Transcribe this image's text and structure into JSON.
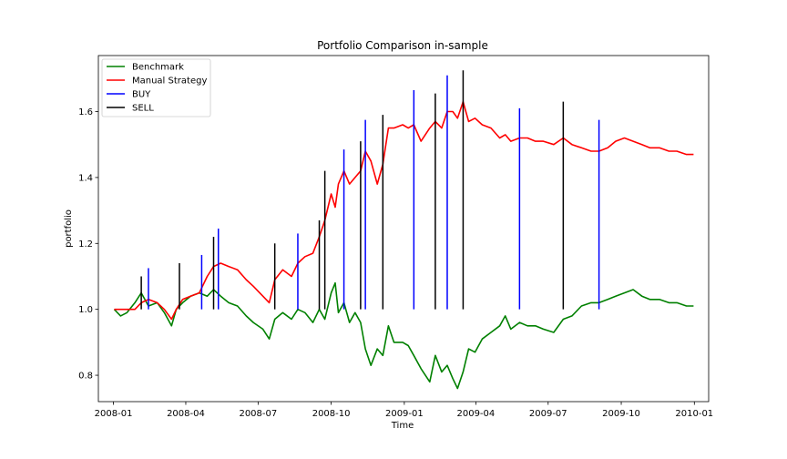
{
  "chart_data": {
    "type": "line",
    "title": "Portfolio Comparison in-sample",
    "xlabel": "Time",
    "ylabel": "portfolio",
    "xlim": [
      "2007-12-13",
      "2010-01-19"
    ],
    "ylim": [
      0.72,
      1.77
    ],
    "x_ticks": [
      {
        "date": "2008-01-01",
        "label": "2008-01"
      },
      {
        "date": "2008-04-01",
        "label": "2008-04"
      },
      {
        "date": "2008-07-01",
        "label": "2008-07"
      },
      {
        "date": "2008-10-01",
        "label": "2008-10"
      },
      {
        "date": "2009-01-01",
        "label": "2009-01"
      },
      {
        "date": "2009-04-01",
        "label": "2009-04"
      },
      {
        "date": "2009-07-01",
        "label": "2009-07"
      },
      {
        "date": "2009-10-01",
        "label": "2009-10"
      },
      {
        "date": "2010-01-01",
        "label": "2010-01"
      }
    ],
    "y_ticks": [
      0.8,
      1.0,
      1.2,
      1.4,
      1.6
    ],
    "grid": false,
    "legend_position": "top-left",
    "legend": [
      {
        "label": "Benchmark",
        "color": "#008000"
      },
      {
        "label": "Manual Strategy",
        "color": "#ff0000"
      },
      {
        "label": "BUY",
        "color": "#0000ff"
      },
      {
        "label": "SELL",
        "color": "#000000"
      }
    ],
    "series": [
      {
        "name": "Benchmark",
        "color": "#008000",
        "points": [
          [
            "2008-01-02",
            1.0
          ],
          [
            "2008-01-10",
            0.98
          ],
          [
            "2008-01-18",
            0.99
          ],
          [
            "2008-01-28",
            1.02
          ],
          [
            "2008-02-05",
            1.05
          ],
          [
            "2008-02-14",
            1.01
          ],
          [
            "2008-02-25",
            1.02
          ],
          [
            "2008-03-05",
            0.99
          ],
          [
            "2008-03-14",
            0.95
          ],
          [
            "2008-03-20",
            1.0
          ],
          [
            "2008-03-28",
            1.02
          ],
          [
            "2008-04-07",
            1.04
          ],
          [
            "2008-04-18",
            1.05
          ],
          [
            "2008-04-28",
            1.04
          ],
          [
            "2008-05-06",
            1.06
          ],
          [
            "2008-05-15",
            1.04
          ],
          [
            "2008-05-25",
            1.02
          ],
          [
            "2008-06-05",
            1.01
          ],
          [
            "2008-06-16",
            0.98
          ],
          [
            "2008-06-25",
            0.96
          ],
          [
            "2008-07-07",
            0.94
          ],
          [
            "2008-07-15",
            0.91
          ],
          [
            "2008-07-22",
            0.97
          ],
          [
            "2008-08-01",
            0.99
          ],
          [
            "2008-08-12",
            0.97
          ],
          [
            "2008-08-20",
            1.0
          ],
          [
            "2008-08-29",
            0.99
          ],
          [
            "2008-09-08",
            0.96
          ],
          [
            "2008-09-16",
            1.0
          ],
          [
            "2008-09-23",
            0.97
          ],
          [
            "2008-10-01",
            1.05
          ],
          [
            "2008-10-06",
            1.08
          ],
          [
            "2008-10-10",
            0.99
          ],
          [
            "2008-10-17",
            1.02
          ],
          [
            "2008-10-24",
            0.96
          ],
          [
            "2008-10-31",
            0.99
          ],
          [
            "2008-11-07",
            0.96
          ],
          [
            "2008-11-13",
            0.88
          ],
          [
            "2008-11-20",
            0.83
          ],
          [
            "2008-11-28",
            0.88
          ],
          [
            "2008-12-05",
            0.86
          ],
          [
            "2008-12-12",
            0.95
          ],
          [
            "2008-12-19",
            0.9
          ],
          [
            "2008-12-30",
            0.9
          ],
          [
            "2009-01-06",
            0.89
          ],
          [
            "2009-01-13",
            0.86
          ],
          [
            "2009-01-22",
            0.82
          ],
          [
            "2009-02-02",
            0.78
          ],
          [
            "2009-02-09",
            0.86
          ],
          [
            "2009-02-17",
            0.81
          ],
          [
            "2009-02-24",
            0.83
          ],
          [
            "2009-03-03",
            0.79
          ],
          [
            "2009-03-09",
            0.76
          ],
          [
            "2009-03-16",
            0.81
          ],
          [
            "2009-03-23",
            0.88
          ],
          [
            "2009-03-31",
            0.87
          ],
          [
            "2009-04-09",
            0.91
          ],
          [
            "2009-04-20",
            0.93
          ],
          [
            "2009-05-01",
            0.95
          ],
          [
            "2009-05-08",
            0.98
          ],
          [
            "2009-05-15",
            0.94
          ],
          [
            "2009-05-26",
            0.96
          ],
          [
            "2009-06-05",
            0.95
          ],
          [
            "2009-06-15",
            0.95
          ],
          [
            "2009-06-25",
            0.94
          ],
          [
            "2009-07-08",
            0.93
          ],
          [
            "2009-07-20",
            0.97
          ],
          [
            "2009-07-31",
            0.98
          ],
          [
            "2009-08-12",
            1.01
          ],
          [
            "2009-08-24",
            1.02
          ],
          [
            "2009-09-03",
            1.02
          ],
          [
            "2009-09-14",
            1.03
          ],
          [
            "2009-09-24",
            1.04
          ],
          [
            "2009-10-05",
            1.05
          ],
          [
            "2009-10-16",
            1.06
          ],
          [
            "2009-10-27",
            1.04
          ],
          [
            "2009-11-06",
            1.03
          ],
          [
            "2009-11-18",
            1.03
          ],
          [
            "2009-11-30",
            1.02
          ],
          [
            "2009-12-10",
            1.02
          ],
          [
            "2009-12-22",
            1.01
          ],
          [
            "2009-12-31",
            1.01
          ]
        ]
      },
      {
        "name": "Manual Strategy",
        "color": "#ff0000",
        "points": [
          [
            "2008-01-02",
            1.0
          ],
          [
            "2008-01-10",
            1.0
          ],
          [
            "2008-01-18",
            1.0
          ],
          [
            "2008-01-28",
            1.0
          ],
          [
            "2008-02-05",
            1.02
          ],
          [
            "2008-02-14",
            1.03
          ],
          [
            "2008-02-25",
            1.02
          ],
          [
            "2008-03-05",
            1.0
          ],
          [
            "2008-03-14",
            0.97
          ],
          [
            "2008-03-20",
            1.0
          ],
          [
            "2008-03-28",
            1.03
          ],
          [
            "2008-04-07",
            1.04
          ],
          [
            "2008-04-18",
            1.05
          ],
          [
            "2008-04-28",
            1.1
          ],
          [
            "2008-05-06",
            1.13
          ],
          [
            "2008-05-15",
            1.14
          ],
          [
            "2008-05-25",
            1.13
          ],
          [
            "2008-06-05",
            1.12
          ],
          [
            "2008-06-16",
            1.09
          ],
          [
            "2008-06-25",
            1.07
          ],
          [
            "2008-07-07",
            1.04
          ],
          [
            "2008-07-15",
            1.02
          ],
          [
            "2008-07-22",
            1.09
          ],
          [
            "2008-08-01",
            1.12
          ],
          [
            "2008-08-12",
            1.1
          ],
          [
            "2008-08-20",
            1.14
          ],
          [
            "2008-08-29",
            1.16
          ],
          [
            "2008-09-08",
            1.17
          ],
          [
            "2008-09-16",
            1.22
          ],
          [
            "2008-09-23",
            1.27
          ],
          [
            "2008-10-01",
            1.35
          ],
          [
            "2008-10-06",
            1.31
          ],
          [
            "2008-10-10",
            1.38
          ],
          [
            "2008-10-17",
            1.42
          ],
          [
            "2008-10-24",
            1.38
          ],
          [
            "2008-10-31",
            1.4
          ],
          [
            "2008-11-07",
            1.42
          ],
          [
            "2008-11-13",
            1.48
          ],
          [
            "2008-11-20",
            1.45
          ],
          [
            "2008-11-28",
            1.38
          ],
          [
            "2008-12-05",
            1.44
          ],
          [
            "2008-12-12",
            1.55
          ],
          [
            "2008-12-19",
            1.55
          ],
          [
            "2008-12-30",
            1.56
          ],
          [
            "2009-01-06",
            1.55
          ],
          [
            "2009-01-13",
            1.56
          ],
          [
            "2009-01-22",
            1.51
          ],
          [
            "2009-02-02",
            1.55
          ],
          [
            "2009-02-09",
            1.57
          ],
          [
            "2009-02-17",
            1.55
          ],
          [
            "2009-02-24",
            1.6
          ],
          [
            "2009-03-03",
            1.6
          ],
          [
            "2009-03-09",
            1.58
          ],
          [
            "2009-03-16",
            1.63
          ],
          [
            "2009-03-23",
            1.57
          ],
          [
            "2009-03-31",
            1.58
          ],
          [
            "2009-04-09",
            1.56
          ],
          [
            "2009-04-20",
            1.55
          ],
          [
            "2009-05-01",
            1.52
          ],
          [
            "2009-05-08",
            1.53
          ],
          [
            "2009-05-15",
            1.51
          ],
          [
            "2009-05-26",
            1.52
          ],
          [
            "2009-06-05",
            1.52
          ],
          [
            "2009-06-15",
            1.51
          ],
          [
            "2009-06-25",
            1.51
          ],
          [
            "2009-07-08",
            1.5
          ],
          [
            "2009-07-20",
            1.52
          ],
          [
            "2009-07-31",
            1.5
          ],
          [
            "2009-08-12",
            1.49
          ],
          [
            "2009-08-24",
            1.48
          ],
          [
            "2009-09-03",
            1.48
          ],
          [
            "2009-09-14",
            1.49
          ],
          [
            "2009-09-24",
            1.51
          ],
          [
            "2009-10-05",
            1.52
          ],
          [
            "2009-10-16",
            1.51
          ],
          [
            "2009-10-27",
            1.5
          ],
          [
            "2009-11-06",
            1.49
          ],
          [
            "2009-11-18",
            1.49
          ],
          [
            "2009-11-30",
            1.48
          ],
          [
            "2009-12-10",
            1.48
          ],
          [
            "2009-12-22",
            1.47
          ],
          [
            "2009-12-31",
            1.47
          ]
        ]
      }
    ],
    "signals": [
      {
        "type": "SELL",
        "date": "2008-02-05",
        "top": 1.1
      },
      {
        "type": "BUY",
        "date": "2008-02-14",
        "top": 1.125
      },
      {
        "type": "SELL",
        "date": "2008-03-24",
        "top": 1.14
      },
      {
        "type": "BUY",
        "date": "2008-04-21",
        "top": 1.165
      },
      {
        "type": "SELL",
        "date": "2008-05-06",
        "top": 1.22
      },
      {
        "type": "BUY",
        "date": "2008-05-12",
        "top": 1.245
      },
      {
        "type": "SELL",
        "date": "2008-07-22",
        "top": 1.2
      },
      {
        "type": "BUY",
        "date": "2008-08-20",
        "top": 1.23
      },
      {
        "type": "SELL",
        "date": "2008-09-16",
        "top": 1.27
      },
      {
        "type": "SELL",
        "date": "2008-09-23",
        "top": 1.42
      },
      {
        "type": "BUY",
        "date": "2008-10-17",
        "top": 1.485
      },
      {
        "type": "SELL",
        "date": "2008-11-07",
        "top": 1.51
      },
      {
        "type": "BUY",
        "date": "2008-11-13",
        "top": 1.575
      },
      {
        "type": "SELL",
        "date": "2008-12-05",
        "top": 1.59
      },
      {
        "type": "BUY",
        "date": "2009-01-13",
        "top": 1.665
      },
      {
        "type": "SELL",
        "date": "2009-02-09",
        "top": 1.655
      },
      {
        "type": "BUY",
        "date": "2009-02-24",
        "top": 1.71
      },
      {
        "type": "SELL",
        "date": "2009-03-16",
        "top": 1.725
      },
      {
        "type": "BUY",
        "date": "2009-05-26",
        "top": 1.61
      },
      {
        "type": "SELL",
        "date": "2009-07-20",
        "top": 1.63
      },
      {
        "type": "BUY",
        "date": "2009-09-03",
        "top": 1.575
      }
    ]
  }
}
